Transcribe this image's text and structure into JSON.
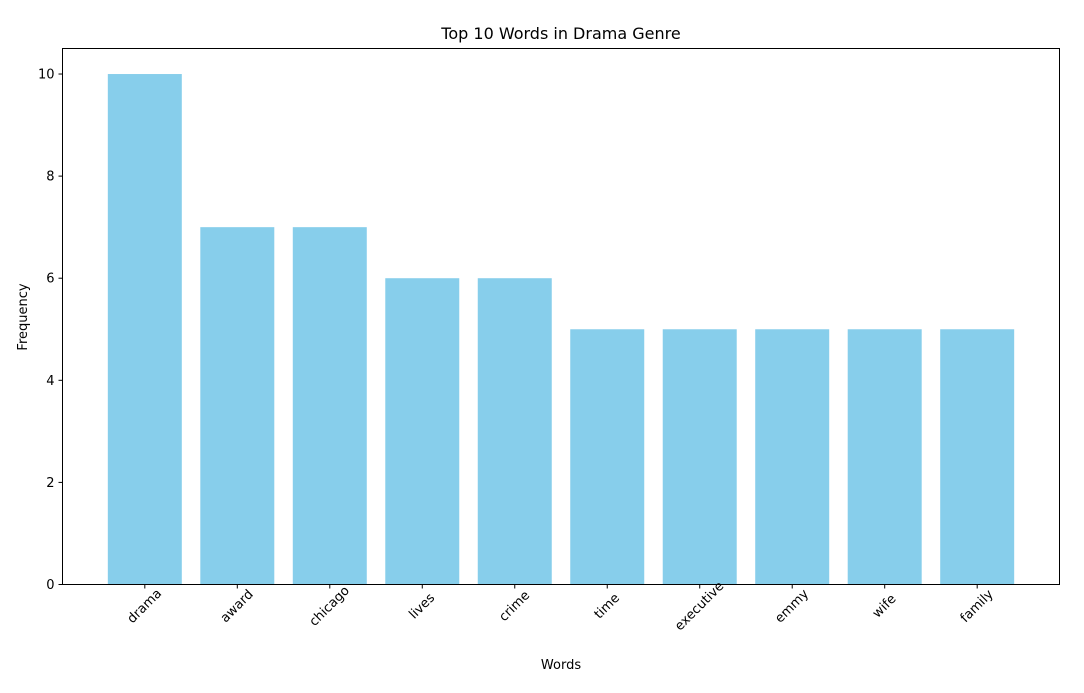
{
  "chart_data": {
    "type": "bar",
    "title": "Top 10 Words in Drama Genre",
    "xlabel": "Words",
    "ylabel": "Frequency",
    "categories": [
      "drama",
      "award",
      "chicago",
      "lives",
      "crime",
      "time",
      "executive",
      "emmy",
      "wife",
      "family"
    ],
    "values": [
      10,
      7,
      7,
      6,
      6,
      5,
      5,
      5,
      5,
      5
    ],
    "ylim": [
      0,
      10.5
    ],
    "yticks": [
      0,
      2,
      4,
      6,
      8,
      10
    ],
    "grid": false,
    "legend": "none",
    "bar_color": "#87CEEB",
    "tick_label_rotation_deg": 45
  }
}
